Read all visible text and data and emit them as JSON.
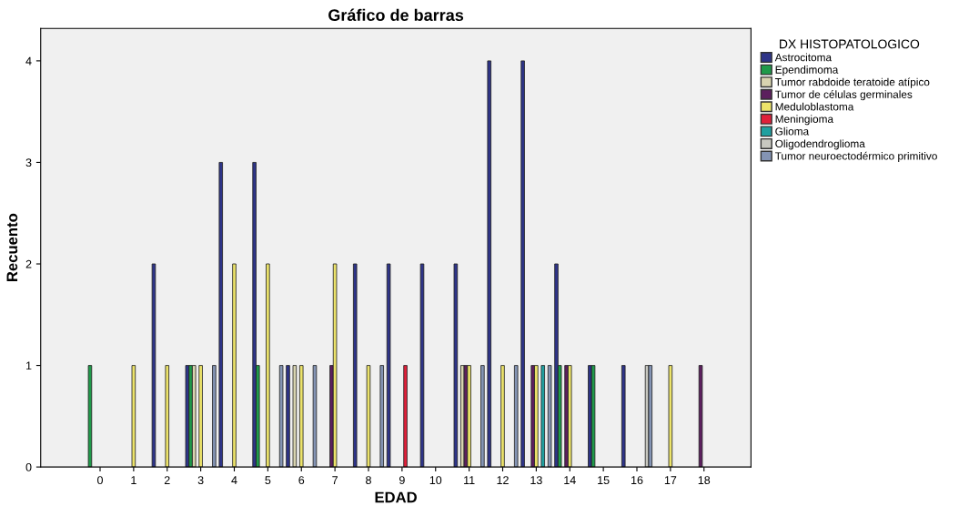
{
  "chart_data": {
    "type": "bar",
    "title": "Gráfico de barras",
    "xlabel": "EDAD",
    "ylabel": "Recuento",
    "legend_title": "DX HISTOPATOLOGICO",
    "categories": [
      "0",
      "1",
      "2",
      "3",
      "4",
      "5",
      "6",
      "7",
      "8",
      "9",
      "10",
      "11",
      "12",
      "13",
      "14",
      "15",
      "16",
      "17",
      "18"
    ],
    "series": [
      {
        "name": "Astrocitoma",
        "color": "#2e3488",
        "values": [
          null,
          null,
          2,
          1,
          3,
          3,
          1,
          null,
          2,
          2,
          2,
          2,
          4,
          4,
          2,
          1,
          1,
          null,
          null
        ]
      },
      {
        "name": "Ependimoma",
        "color": "#1f9a4a",
        "values": [
          1,
          null,
          null,
          1,
          null,
          1,
          null,
          null,
          null,
          null,
          null,
          null,
          null,
          null,
          1,
          1,
          null,
          null,
          null
        ]
      },
      {
        "name": "Tumor rabdoide teratoide atípico",
        "color": "#d8d4b0",
        "values": [
          null,
          null,
          null,
          1,
          null,
          null,
          1,
          null,
          null,
          null,
          null,
          1,
          null,
          null,
          null,
          null,
          null,
          null,
          null
        ]
      },
      {
        "name": "Tumor de células germinales",
        "color": "#5c1f5e",
        "values": [
          null,
          null,
          null,
          null,
          null,
          null,
          null,
          1,
          null,
          null,
          null,
          1,
          null,
          1,
          1,
          null,
          null,
          null,
          1
        ]
      },
      {
        "name": "Meduloblastoma",
        "color": "#ece36a",
        "values": [
          null,
          1,
          1,
          1,
          2,
          2,
          1,
          2,
          1,
          null,
          null,
          1,
          1,
          1,
          1,
          null,
          null,
          1,
          null
        ]
      },
      {
        "name": "Meningioma",
        "color": "#e0203a",
        "values": [
          null,
          null,
          null,
          null,
          null,
          null,
          null,
          null,
          null,
          1,
          null,
          null,
          null,
          null,
          null,
          null,
          null,
          null,
          null
        ]
      },
      {
        "name": "Glioma",
        "color": "#20a0a0",
        "values": [
          null,
          null,
          null,
          null,
          null,
          null,
          null,
          null,
          null,
          null,
          null,
          null,
          null,
          1,
          null,
          null,
          null,
          null,
          null
        ]
      },
      {
        "name": "Oligodendroglioma",
        "color": "#c8c8c0",
        "values": [
          null,
          null,
          null,
          null,
          null,
          null,
          null,
          null,
          null,
          null,
          null,
          null,
          null,
          null,
          null,
          null,
          1,
          null,
          null
        ]
      },
      {
        "name": "Tumor neuroectodérmico primitivo",
        "color": "#8494b4",
        "values": [
          null,
          null,
          null,
          1,
          null,
          1,
          1,
          null,
          1,
          null,
          null,
          1,
          1,
          1,
          null,
          null,
          1,
          null,
          null
        ]
      }
    ],
    "ylim": [
      0,
      4.32
    ],
    "yticks": [
      0,
      1,
      2,
      3,
      4
    ],
    "grid": false,
    "legend": "top right"
  }
}
